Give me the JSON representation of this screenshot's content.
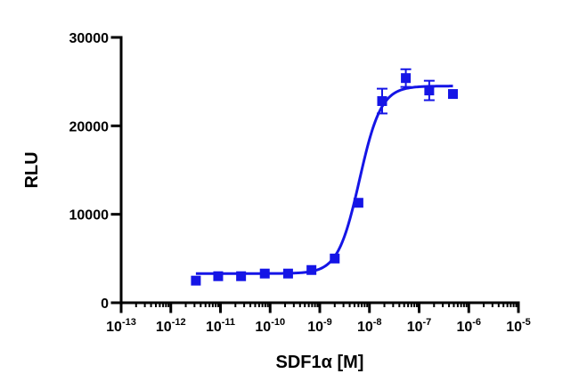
{
  "chart_data": {
    "type": "scatter",
    "title": "",
    "xlabel": "SDF1α [M]",
    "ylabel": "RLU",
    "x_scale": "log10",
    "xlim": [
      1e-13,
      1e-05
    ],
    "ylim": [
      0,
      30000
    ],
    "x_ticks": [
      {
        "value": 1e-13,
        "base": "10",
        "exp": "-13"
      },
      {
        "value": 1e-12,
        "base": "10",
        "exp": "-12"
      },
      {
        "value": 1e-11,
        "base": "10",
        "exp": "-11"
      },
      {
        "value": 1e-10,
        "base": "10",
        "exp": "-10"
      },
      {
        "value": 1e-09,
        "base": "10",
        "exp": "-9"
      },
      {
        "value": 1e-08,
        "base": "10",
        "exp": "-8"
      },
      {
        "value": 1e-07,
        "base": "10",
        "exp": "-7"
      },
      {
        "value": 1e-06,
        "base": "10",
        "exp": "-6"
      },
      {
        "value": 1e-05,
        "base": "10",
        "exp": "-5"
      }
    ],
    "y_ticks": [
      {
        "value": 0,
        "label": "0"
      },
      {
        "value": 10000,
        "label": "10000"
      },
      {
        "value": 20000,
        "label": "20000"
      },
      {
        "value": 30000,
        "label": "30000"
      }
    ],
    "grid": false,
    "legend": "none",
    "color": "#1515e6",
    "series": [
      {
        "points": [
          {
            "x": 3.2e-12,
            "y": 2500,
            "err": 0
          },
          {
            "x": 9e-12,
            "y": 3000,
            "err": 0
          },
          {
            "x": 2.6e-11,
            "y": 3000,
            "err": 0
          },
          {
            "x": 7.8e-11,
            "y": 3300,
            "err": 0
          },
          {
            "x": 2.3e-10,
            "y": 3300,
            "err": 0
          },
          {
            "x": 6.8e-10,
            "y": 3700,
            "err": 0
          },
          {
            "x": 2e-09,
            "y": 5000,
            "err": 0
          },
          {
            "x": 6e-09,
            "y": 11300,
            "err": 0
          },
          {
            "x": 1.8e-08,
            "y": 22800,
            "err": 1400
          },
          {
            "x": 5.4e-08,
            "y": 25400,
            "err": 1000
          },
          {
            "x": 1.6e-07,
            "y": 24000,
            "err": 1100
          },
          {
            "x": 4.8e-07,
            "y": 23600,
            "err": 0
          }
        ],
        "fit": {
          "model": "four-parameter logistic",
          "bottom": 3300,
          "top": 24500,
          "logEC50": -8.2,
          "hill": 2.0,
          "x_range": [
            3.2e-12,
            4.8e-07
          ]
        }
      }
    ]
  }
}
